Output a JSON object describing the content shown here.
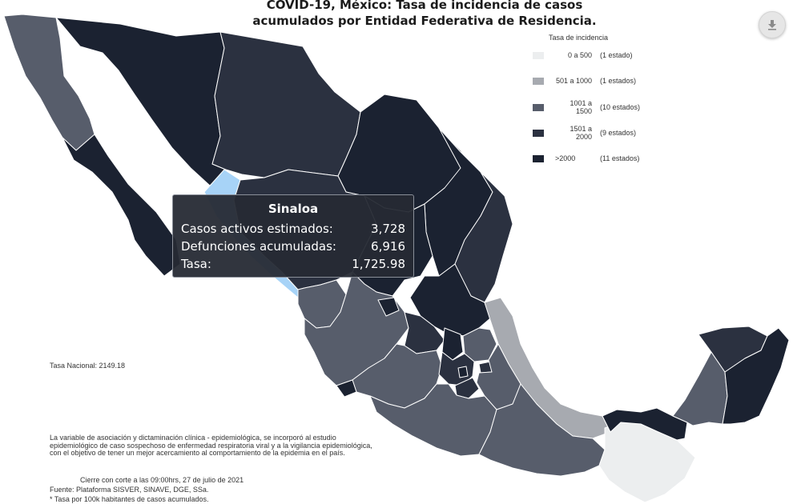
{
  "header": {
    "title_line1": "COVID-19, México: Tasa de incidencia de casos",
    "title_line2": "acumulados por Entidad Federativa de Residencia."
  },
  "download_button": {
    "icon": "download-icon"
  },
  "legend": {
    "title": "Tasa de incidencia",
    "items": [
      {
        "range": "0 a 500",
        "count": "(1 estado)",
        "color": "#eceeef"
      },
      {
        "range": "501 a 1000",
        "count": "(1 estados)",
        "color": "#a7aab0"
      },
      {
        "range": "1001 a 1500",
        "count": "(10 estados)",
        "color": "#575d6b"
      },
      {
        "range": "1501 a 2000",
        "count": "(9 estados)",
        "color": "#2b3140"
      },
      {
        "range": ">2000",
        "count": "(11 estados)",
        "color": "#1b2231"
      }
    ]
  },
  "tooltip": {
    "state": "Sinaloa",
    "rows": [
      {
        "label": "Casos activos estimados:",
        "value": "3,728"
      },
      {
        "label": "Defunciones acumuladas:",
        "value": "6,916"
      },
      {
        "label": "Tasa:",
        "value": "1,725.98"
      }
    ]
  },
  "map": {
    "highlight_color": "#a7d3f7",
    "border_color": "#ffffff"
  },
  "footer": {
    "national_rate": "Tasa Nacional: 2149.18",
    "note_line1": "La variable de asociación y dictaminación clínica - epidemiológica, se incorporó al estudio",
    "note_line2": "epidemiológico de caso sospechoso de enfermedad respiratoria viral y a la vigilancia epidemiológica,",
    "note_line3": "con el objetivo de tener un mejor acercamiento al comportamiento de la epidemia en el país.",
    "cierre": "Cierre con corte a las 09:00hrs, 27 de julio de 2021",
    "fuente": "Fuente: Plataforma SISVER, SINAVE, DGE, SSa.",
    "tasa_note": "* Tasa por 100k habitantes de casos acumulados."
  }
}
